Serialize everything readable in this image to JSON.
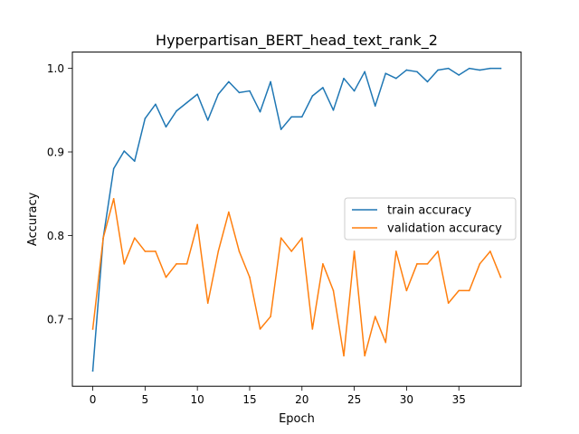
{
  "chart_data": {
    "type": "line",
    "title": "Hyperpartisan_BERT_head_text_rank_2",
    "xlabel": "Epoch",
    "ylabel": "Accuracy",
    "xlim": [
      -1.95,
      40.95
    ],
    "ylim": [
      0.6195,
      1.0195
    ],
    "xticks": [
      0,
      5,
      10,
      15,
      20,
      25,
      30,
      35
    ],
    "yticks": [
      0.7,
      0.8,
      0.9,
      1.0
    ],
    "ytick_labels": [
      "0.7",
      "0.8",
      "0.9",
      "1.0"
    ],
    "grid": false,
    "legend_position": "center-right",
    "x": [
      0,
      1,
      2,
      3,
      4,
      5,
      6,
      7,
      8,
      9,
      10,
      11,
      12,
      13,
      14,
      15,
      16,
      17,
      18,
      19,
      20,
      21,
      22,
      23,
      24,
      25,
      26,
      27,
      28,
      29,
      30,
      31,
      32,
      33,
      34,
      35,
      36,
      37,
      38,
      39
    ],
    "series": [
      {
        "name": "train accuracy",
        "color": "#1f77b4",
        "values": [
          0.638,
          0.797,
          0.88,
          0.901,
          0.889,
          0.94,
          0.957,
          0.93,
          0.949,
          0.959,
          0.969,
          0.938,
          0.969,
          0.984,
          0.971,
          0.973,
          0.948,
          0.984,
          0.927,
          0.942,
          0.942,
          0.967,
          0.977,
          0.95,
          0.988,
          0.973,
          0.996,
          0.955,
          0.994,
          0.988,
          0.998,
          0.996,
          0.984,
          0.998,
          1.0,
          0.992,
          1.0,
          0.998,
          1.0,
          1.0
        ]
      },
      {
        "name": "validation accuracy",
        "color": "#ff7f0e",
        "values": [
          0.688,
          0.797,
          0.844,
          0.766,
          0.797,
          0.781,
          0.781,
          0.75,
          0.766,
          0.766,
          0.813,
          0.719,
          0.781,
          0.828,
          0.781,
          0.75,
          0.688,
          0.703,
          0.797,
          0.781,
          0.797,
          0.688,
          0.766,
          0.734,
          0.656,
          0.781,
          0.656,
          0.703,
          0.672,
          0.781,
          0.734,
          0.766,
          0.766,
          0.781,
          0.719,
          0.734,
          0.734,
          0.766,
          0.781,
          0.75
        ]
      }
    ]
  }
}
